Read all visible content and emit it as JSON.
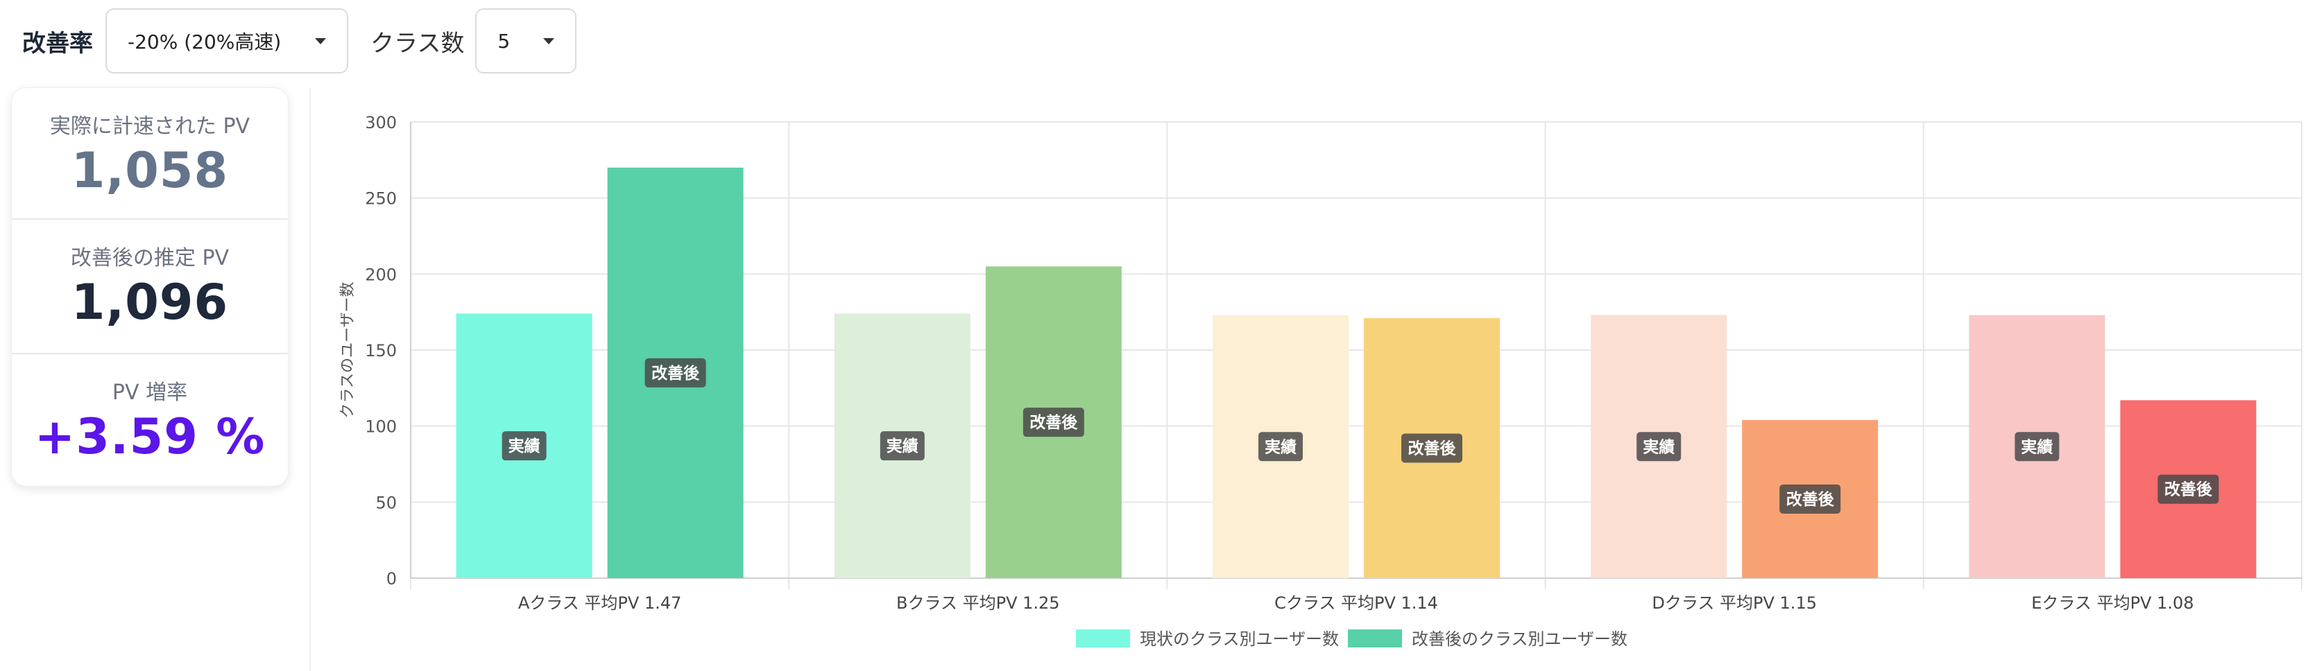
{
  "controls": {
    "rate_label": "改善率",
    "rate_value": "-20% (20%高速)",
    "class_label": "クラス数",
    "class_value": "5"
  },
  "stats": {
    "actual_label": "実際に計速された PV",
    "actual_value": "1,058",
    "improved_label": "改善後の推定 PV",
    "improved_value": "1,096",
    "increase_label": "PV 増率",
    "increase_value": "+3.59 %"
  },
  "colors": {
    "accent": "#5b16e8",
    "actual_series": [
      "#7af8e0",
      "#dcefd9",
      "#fcefd3",
      "#fcdfd3",
      "#fac7c7"
    ],
    "improved_series": [
      "#58d0a8",
      "#99d08e",
      "#f8d27a",
      "#f8a274",
      "#f86d6d"
    ]
  },
  "chart_data": {
    "type": "bar",
    "categories": [
      "Aクラス 平均PV 1.47",
      "Bクラス 平均PV 1.25",
      "Cクラス 平均PV 1.14",
      "Dクラス 平均PV 1.15",
      "Eクラス 平均PV 1.08"
    ],
    "series": [
      {
        "name": "現状のクラス別ユーザー数",
        "values": [
          174,
          174,
          173,
          173,
          173
        ],
        "bar_label": "実績"
      },
      {
        "name": "改善後のクラス別ユーザー数",
        "values": [
          270,
          205,
          171,
          104,
          117
        ],
        "bar_label": "改善後"
      }
    ],
    "ylabel": "クラスのユーザー数",
    "xlabel": "",
    "ylim": [
      0,
      300
    ],
    "yticks": [
      0,
      50,
      100,
      150,
      200,
      250,
      300
    ],
    "grid": true,
    "legend": "bottom"
  }
}
